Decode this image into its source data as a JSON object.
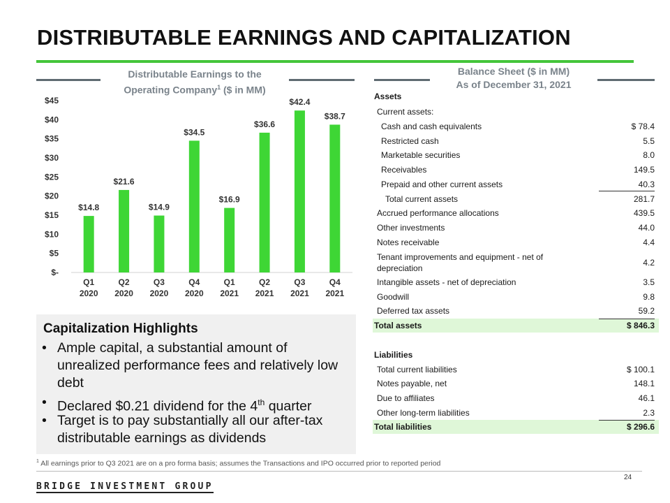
{
  "title": "DISTRIBUTABLE EARNINGS AND CAPITALIZATION",
  "chart_section": {
    "title_line1": "Distributable Earnings to the",
    "title_line2_pre": "Operating Company",
    "title_sup": "1",
    "title_line2_post": " ($ in MM)"
  },
  "chart_data": {
    "type": "bar",
    "title": "Distributable Earnings to the Operating Company ($ in MM)",
    "categories": [
      [
        "Q1",
        "2020"
      ],
      [
        "Q2",
        "2020"
      ],
      [
        "Q3",
        "2020"
      ],
      [
        "Q4",
        "2020"
      ],
      [
        "Q1",
        "2021"
      ],
      [
        "Q2",
        "2021"
      ],
      [
        "Q3",
        "2021"
      ],
      [
        "Q4",
        "2021"
      ]
    ],
    "values": [
      14.8,
      21.6,
      14.9,
      34.5,
      16.9,
      36.6,
      42.4,
      38.7
    ],
    "value_labels": [
      "$14.8",
      "$21.6",
      "$14.9",
      "$34.5",
      "$16.9",
      "$36.6",
      "$42.4",
      "$38.7"
    ],
    "ylim": [
      0,
      45
    ],
    "yticks": [
      0,
      5,
      10,
      15,
      20,
      25,
      30,
      35,
      40,
      45
    ],
    "ytick_labels": [
      "$-",
      "$5",
      "$10",
      "$15",
      "$20",
      "$25",
      "$30",
      "$35",
      "$40",
      "$45"
    ],
    "bar_color": "#3ed635",
    "grid": false
  },
  "capitalization": {
    "title": "Capitalization Highlights",
    "bullets": [
      {
        "text": "Ample capital, a substantial amount of unrealized performance fees and relatively low debt"
      },
      {
        "pre": "Declared $0.21 dividend for the 4",
        "sup": "th",
        "post": " quarter"
      },
      {
        "text": "Target is to pay substantially all our after-tax distributable earnings as dividends"
      }
    ],
    "bullet_char": "•"
  },
  "balance_sheet": {
    "title_line1": "Balance Sheet ($ in MM)",
    "title_line2": "As of December 31, 2021",
    "assets_header": "Assets",
    "current_assets_header": "Current assets:",
    "current_assets": [
      {
        "label": "Cash and cash equivalents",
        "value": "$ 78.4"
      },
      {
        "label": "Restricted cash",
        "value": "5.5"
      },
      {
        "label": "Marketable securities",
        "value": "8.0"
      },
      {
        "label": "Receivables",
        "value": "149.5"
      },
      {
        "label": "Prepaid and other current assets",
        "value": "40.3"
      }
    ],
    "total_current_assets": {
      "label": "Total current assets",
      "value": "281.7"
    },
    "other_assets": [
      {
        "label": "Accrued performance allocations",
        "value": "439.5"
      },
      {
        "label": "Other investments",
        "value": "44.0"
      },
      {
        "label": "Notes receivable",
        "value": "4.4"
      },
      {
        "label": "Tenant improvements and equipment - net of depreciation",
        "value": "4.2"
      },
      {
        "label": "Intangible assets - net of depreciation",
        "value": "3.5"
      },
      {
        "label": "Goodwill",
        "value": "9.8"
      },
      {
        "label": "Deferred tax assets",
        "value": "59.2"
      }
    ],
    "total_assets": {
      "label": "Total assets",
      "value": "$ 846.3"
    },
    "liabilities_header": "Liabilities",
    "liabilities": [
      {
        "label": "Total current liabilities",
        "value": "$ 100.1"
      },
      {
        "label": "Notes payable, net",
        "value": "148.1"
      },
      {
        "label": "Due to affiliates",
        "value": "46.1"
      },
      {
        "label": "Other long-term liabilities",
        "value": "2.3"
      }
    ],
    "total_liabilities": {
      "label": "Total liabilities",
      "value": "$ 296.6"
    }
  },
  "footnote": {
    "sup": "1",
    "text": " All earnings prior to Q3 2021 are on a pro forma basis; assumes the Transactions and IPO occurred prior to reported period"
  },
  "page_number": "24",
  "logo_text": "BRIDGE INVESTMENT GROUP",
  "colors": {
    "accent_green": "#44c53a",
    "bar_green": "#3ed635",
    "highlight_green": "#dff7d8",
    "section_gray": "#7a838b"
  }
}
